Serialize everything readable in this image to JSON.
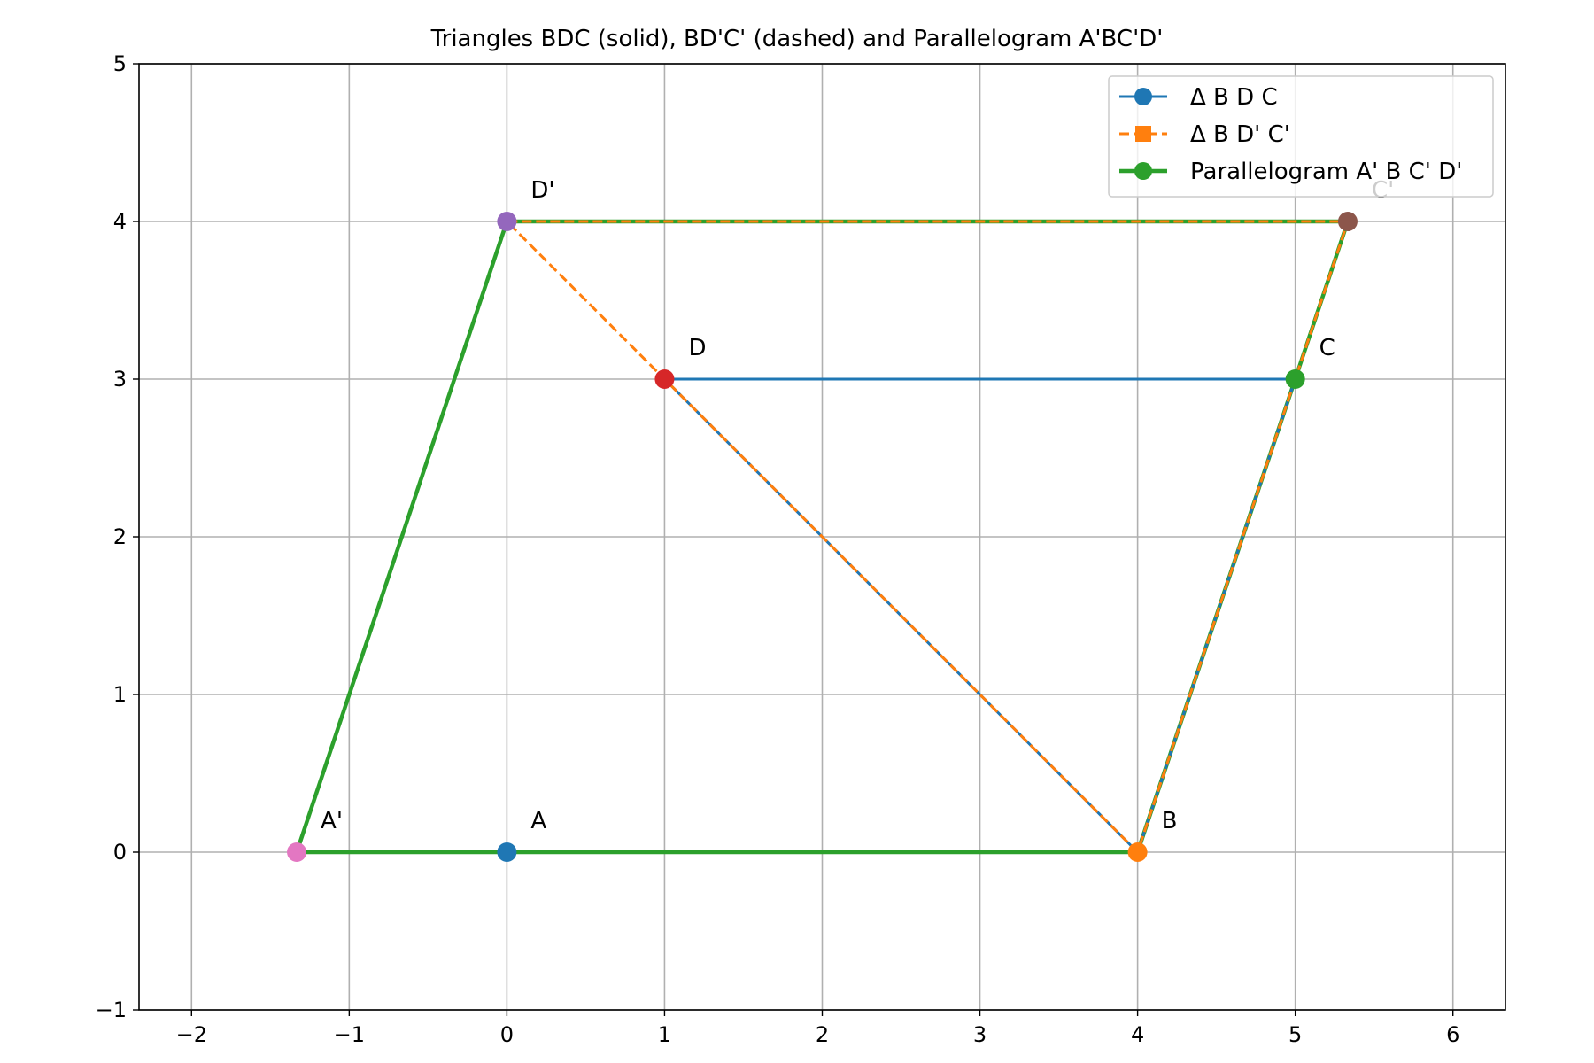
{
  "chart_data": {
    "type": "line",
    "title": "Triangles BDC (solid), BD'C' (dashed) and Parallelogram A'BC'D'",
    "xlabel": "",
    "ylabel": "",
    "xlim": [
      -2.333,
      6.333
    ],
    "ylim": [
      -1,
      5
    ],
    "xticks": [
      -2,
      -1,
      0,
      1,
      2,
      3,
      4,
      5,
      6
    ],
    "yticks": [
      -1,
      0,
      1,
      2,
      3,
      4,
      5
    ],
    "xtick_labels": [
      "−2",
      "−1",
      "0",
      "1",
      "2",
      "3",
      "4",
      "5",
      "6"
    ],
    "ytick_labels": [
      "−1",
      "0",
      "1",
      "2",
      "3",
      "4",
      "5"
    ],
    "grid": true,
    "legend_position": "top-right",
    "series": [
      {
        "name": "Δ B D C",
        "style": "solid",
        "marker": "circle",
        "color": "#1f77b4",
        "x": [
          4,
          1,
          5,
          4
        ],
        "y": [
          0,
          3,
          3,
          0
        ]
      },
      {
        "name": "Δ B D' C'",
        "style": "dashed",
        "marker": "square",
        "color": "#ff7f0e",
        "x": [
          4,
          0,
          5.333,
          4
        ],
        "y": [
          0,
          4,
          4,
          0
        ]
      },
      {
        "name": "Parallelogram A' B C' D'",
        "style": "solid",
        "marker": "circle",
        "color": "#2ca02c",
        "x": [
          -1.333,
          4,
          5.333,
          0,
          -1.333
        ],
        "y": [
          0,
          0,
          4,
          4,
          0
        ]
      }
    ],
    "points": [
      {
        "label": "A",
        "x": 0,
        "y": 0,
        "color": "#1f77b4"
      },
      {
        "label": "B",
        "x": 4,
        "y": 0,
        "color": "#ff7f0e"
      },
      {
        "label": "C",
        "x": 5,
        "y": 3,
        "color": "#2ca02c"
      },
      {
        "label": "D",
        "x": 1,
        "y": 3,
        "color": "#d62728"
      },
      {
        "label": "D'",
        "x": 0,
        "y": 4,
        "color": "#9467bd"
      },
      {
        "label": "C'",
        "x": 5.333,
        "y": 4,
        "color": "#8c564b"
      },
      {
        "label": "A'",
        "x": -1.333,
        "y": 0,
        "color": "#e377c2"
      }
    ]
  },
  "colors": {
    "grid": "#b0b0b0",
    "axes": "#000000",
    "legend_border": "#cccccc"
  }
}
